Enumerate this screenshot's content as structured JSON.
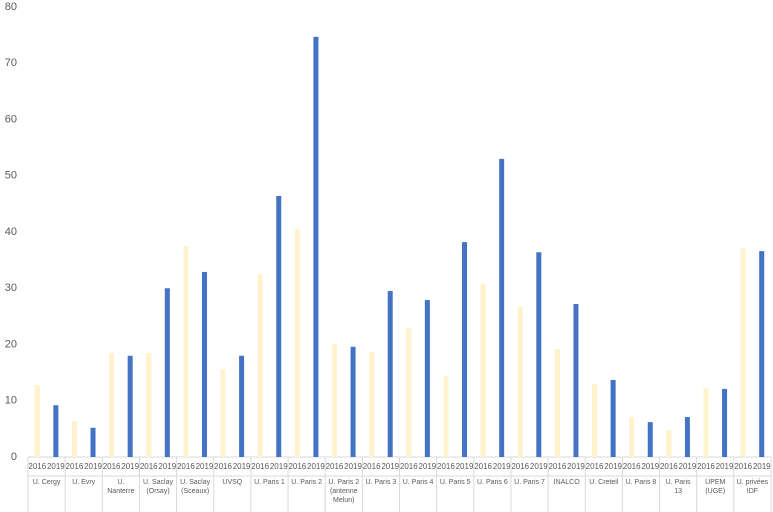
{
  "chart_data": {
    "type": "bar",
    "categories": [
      "U. Cergy",
      "U. Evry",
      "U. Nanterre",
      "U. Saclay (Orsay)",
      "U. Saclay (Sceaux)",
      "UVSQ",
      "U. Paris 1",
      "U. Paris 2",
      "U. Paris 2 (antenne Melun)",
      "U. Paris 3",
      "U. Paris 4",
      "U. Paris 5",
      "U. Paris 6",
      "U. Paris 7",
      "INALCO",
      "U. Creteil",
      "U. Paris 8",
      "U. Paris 13",
      "UPEM (UGE)",
      "U. privées IDF"
    ],
    "series": [
      {
        "name": "2016",
        "color": "#fff2cc",
        "values": [
          12.8,
          6.4,
          18.5,
          18.5,
          37.5,
          15.6,
          32.5,
          40.5,
          20.1,
          18.7,
          22.9,
          14.4,
          30.8,
          26.7,
          19.2,
          13.0,
          7.1,
          4.8,
          12.3,
          37.2
        ]
      },
      {
        "name": "2019",
        "color": "#4472c4",
        "values": [
          9.2,
          5.2,
          18.0,
          30.0,
          32.9,
          18.0,
          46.4,
          74.7,
          19.6,
          29.5,
          27.9,
          38.2,
          53.0,
          36.4,
          27.2,
          13.7,
          6.2,
          7.1,
          12.1,
          36.6
        ]
      }
    ],
    "ylim": [
      0,
      80
    ],
    "yticks": [
      0,
      10,
      20,
      30,
      40,
      50,
      60,
      70,
      80
    ],
    "grid": false
  }
}
